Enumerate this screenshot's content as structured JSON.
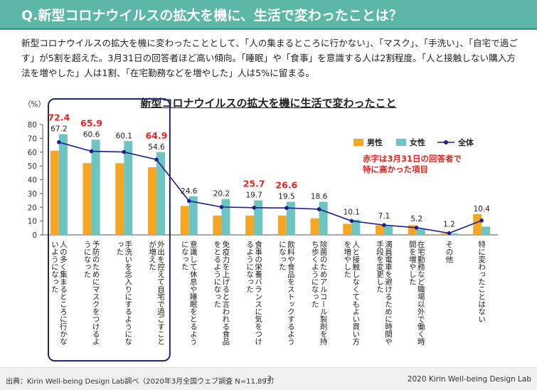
{
  "header": {
    "title": "Q.新型コロナウイルスの拡大を機に、生活で変わったことは？"
  },
  "intro": "新型コロナウイルスの拡大を機に変わったこととして、「人の集まるところに行かない」、「マスク」、「手洗い」、「自宅で過ごす」が5割を超えた。3月31日の回答者ほど高い傾向。「睡眠」や「食事」を意識する人は2割程度。「人と接触しない購入方法を増やした」人は1割、「在宅勤務などを増やした」人は5%に留まる。",
  "chart_data": {
    "type": "bar",
    "title": "新型コロナウイルスの拡大を機に生活で変わったこと",
    "ylabel": "（%）",
    "ylim": [
      0,
      80
    ],
    "yticks": [
      0,
      10,
      20,
      30,
      40,
      50,
      60,
      70,
      80
    ],
    "categories": [
      "人の多く集まるところに行かないようになった",
      "予防のためにマスクをつけるようになった",
      "手洗いを念入りにするようになった",
      "外出を控えて自宅で過ごすことが増えた",
      "意識して休息や睡眠をとるようになった",
      "免疫力を上げると言われる食品をとるようになった",
      "食事の栄養バランスに気をつけるようになった",
      "飲料や食品をストックするようになった",
      "除菌のためアルコール製剤を持ち歩くようになった",
      "人と接触しなくてもよい買い方を増やした",
      "満員電車を避けるために時間や手段を変更した",
      "在宅勤務など職場以外で働く時間を増やした",
      "その他",
      "特に変わったことはない"
    ],
    "series": [
      {
        "name": "男性",
        "type": "bar",
        "color": "#f5a623",
        "values": [
          61,
          52,
          52,
          49,
          21,
          14,
          14,
          14,
          12,
          8,
          7,
          7,
          1,
          15
        ]
      },
      {
        "name": "女性",
        "type": "bar",
        "color": "#6dc5c2",
        "values": [
          73,
          69,
          68,
          60,
          28,
          26,
          25,
          24,
          24,
          11,
          7,
          4,
          1,
          6
        ]
      },
      {
        "name": "全体",
        "type": "line",
        "color": "#1f1f8f",
        "values": [
          67.2,
          60.6,
          60.1,
          54.6,
          24.6,
          20.2,
          19.7,
          19.5,
          18.6,
          10.1,
          7.1,
          5.2,
          1.2,
          10.4
        ],
        "labels": [
          "67.2",
          "60.6",
          "60.1",
          "54.6",
          "24.6",
          "20.2",
          "19.7",
          "19.5",
          "18.6",
          "10.1",
          "7.1",
          "5.2",
          "1.2",
          "10.4"
        ]
      }
    ],
    "highlights": [
      {
        "category_index": 0,
        "value": "72.4"
      },
      {
        "category_index": 1,
        "value": "65.9"
      },
      {
        "category_index": 3,
        "value": "64.9"
      },
      {
        "category_index": 6,
        "value": "25.7"
      },
      {
        "category_index": 7,
        "value": "26.6"
      }
    ],
    "note": "赤字は3月31日の回答者で\n特に高かった項目",
    "legend_position": "top-right",
    "grid": false,
    "colors": {
      "highlight": "#e8231d",
      "box": "#1a2a6c",
      "axis": "#555555"
    }
  },
  "footer": {
    "source": "出典：Kirin Well-being Design Lab調べ（2020年3月全国ウェブ調査 N=11,893）",
    "page": "-3-",
    "copyright": "2020 Kirin Well-being Design Lab"
  }
}
